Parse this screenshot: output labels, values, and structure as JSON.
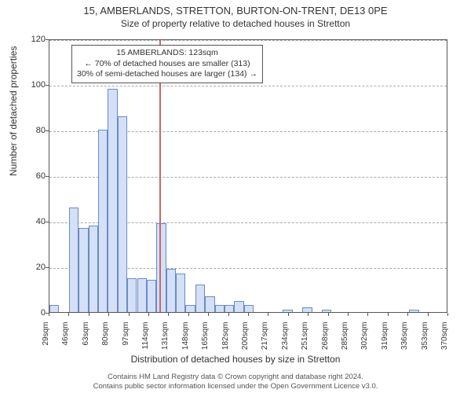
{
  "title": "15, AMBERLANDS, STRETTON, BURTON-ON-TRENT, DE13 0PE",
  "subtitle": "Size of property relative to detached houses in Stretton",
  "y_axis_label": "Number of detached properties",
  "x_axis_label": "Distribution of detached houses by size in Stretton",
  "annotation": {
    "line1": "15 AMBERLANDS: 123sqm",
    "line2": "← 70% of detached houses are smaller (313)",
    "line3": "30% of semi-detached houses are larger (134) →"
  },
  "footer": {
    "line1": "Contains HM Land Registry data © Crown copyright and database right 2024.",
    "line2": "Contains public sector information licensed under the Open Government Licence v3.0."
  },
  "chart": {
    "type": "histogram",
    "bar_fill": "#d3e0f7",
    "bar_stroke": "#6a8bc4",
    "highlight_color": "#cc6666",
    "grid_color": "#aaaaaa",
    "axis_color": "#555555",
    "background_color": "#ffffff",
    "ylim": [
      0,
      120
    ],
    "y_ticks": [
      0,
      20,
      40,
      60,
      80,
      100,
      120
    ],
    "x_tick_labels": [
      "29sqm",
      "46sqm",
      "63sqm",
      "80sqm",
      "97sqm",
      "114sqm",
      "131sqm",
      "148sqm",
      "165sqm",
      "182sqm",
      "200sqm",
      "217sqm",
      "234sqm",
      "251sqm",
      "268sqm",
      "285sqm",
      "302sqm",
      "319sqm",
      "336sqm",
      "353sqm",
      "370sqm"
    ],
    "x_range": [
      29,
      370
    ],
    "bin_width_sqm": 17,
    "highlight_x": 123,
    "values": [
      3,
      0,
      46,
      37,
      38,
      80,
      98,
      86,
      15,
      15,
      14,
      39,
      19,
      17,
      3,
      12,
      7,
      3,
      3,
      5,
      3,
      0,
      0,
      0,
      1,
      0,
      2,
      0,
      1,
      0,
      0,
      0,
      0,
      0,
      0,
      0,
      0,
      1,
      0,
      0,
      0
    ]
  }
}
